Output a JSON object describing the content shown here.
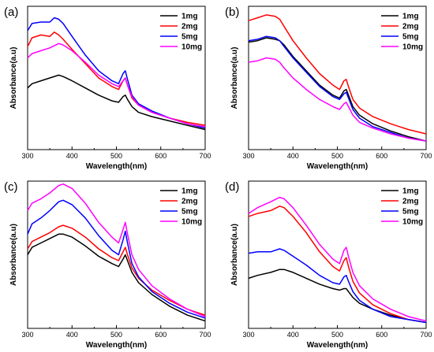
{
  "chart_data": [
    {
      "type": "line",
      "panel_label": "(a)",
      "xlabel": "Wavelength(nm)",
      "ylabel": "Absorbance(a.u)",
      "xlim": [
        300,
        700
      ],
      "ylim": [
        0,
        1
      ],
      "xticks": [
        300,
        400,
        500,
        600,
        700
      ],
      "y_tick_labels": "none",
      "grid": false,
      "legend_position": "top-right",
      "series": [
        {
          "name": "1mg",
          "color": "#000000",
          "x": [
            300,
            310,
            330,
            350,
            370,
            380,
            400,
            430,
            460,
            490,
            505,
            515,
            520,
            525,
            535,
            550,
            580,
            620,
            660,
            700
          ],
          "y": [
            0.43,
            0.46,
            0.48,
            0.5,
            0.52,
            0.51,
            0.48,
            0.43,
            0.38,
            0.34,
            0.33,
            0.37,
            0.38,
            0.35,
            0.3,
            0.26,
            0.23,
            0.2,
            0.17,
            0.14
          ]
        },
        {
          "name": "2mg",
          "color": "#ff0000",
          "x": [
            300,
            310,
            330,
            350,
            360,
            370,
            380,
            400,
            430,
            460,
            490,
            505,
            515,
            520,
            525,
            535,
            550,
            580,
            620,
            660,
            700
          ],
          "y": [
            0.72,
            0.78,
            0.8,
            0.79,
            0.82,
            0.8,
            0.77,
            0.7,
            0.6,
            0.5,
            0.44,
            0.42,
            0.48,
            0.5,
            0.45,
            0.36,
            0.31,
            0.26,
            0.22,
            0.19,
            0.17
          ]
        },
        {
          "name": "5mg",
          "color": "#0000ff",
          "x": [
            300,
            310,
            330,
            350,
            360,
            370,
            380,
            400,
            430,
            460,
            490,
            505,
            515,
            520,
            525,
            535,
            550,
            580,
            620,
            660,
            700
          ],
          "y": [
            0.83,
            0.88,
            0.89,
            0.89,
            0.92,
            0.91,
            0.88,
            0.79,
            0.66,
            0.55,
            0.48,
            0.46,
            0.53,
            0.55,
            0.49,
            0.38,
            0.32,
            0.27,
            0.22,
            0.18,
            0.15
          ]
        },
        {
          "name": "10mg",
          "color": "#ff00ff",
          "x": [
            300,
            310,
            330,
            350,
            370,
            380,
            400,
            430,
            460,
            490,
            505,
            515,
            520,
            525,
            535,
            550,
            580,
            620,
            660,
            700
          ],
          "y": [
            0.64,
            0.67,
            0.69,
            0.71,
            0.74,
            0.73,
            0.69,
            0.61,
            0.52,
            0.46,
            0.44,
            0.48,
            0.5,
            0.45,
            0.37,
            0.31,
            0.26,
            0.22,
            0.18,
            0.16
          ]
        }
      ]
    },
    {
      "type": "line",
      "panel_label": "(b)",
      "xlabel": "Wavelength(nm)",
      "ylabel": "Absorbance(a.u)",
      "xlim": [
        300,
        700
      ],
      "ylim": [
        0,
        1
      ],
      "xticks": [
        300,
        400,
        500,
        600,
        700
      ],
      "y_tick_labels": "none",
      "grid": false,
      "legend_position": "top-right",
      "series": [
        {
          "name": "1mg",
          "color": "#000000",
          "x": [
            300,
            320,
            340,
            360,
            370,
            380,
            400,
            430,
            460,
            490,
            505,
            515,
            520,
            525,
            535,
            550,
            580,
            620,
            660,
            700
          ],
          "y": [
            0.75,
            0.76,
            0.78,
            0.77,
            0.76,
            0.73,
            0.65,
            0.55,
            0.45,
            0.38,
            0.36,
            0.41,
            0.42,
            0.38,
            0.3,
            0.24,
            0.18,
            0.13,
            0.09,
            0.06
          ]
        },
        {
          "name": "2mg",
          "color": "#ff0000",
          "x": [
            300,
            320,
            340,
            360,
            370,
            380,
            400,
            430,
            460,
            490,
            505,
            515,
            520,
            525,
            535,
            550,
            580,
            620,
            660,
            700
          ],
          "y": [
            0.9,
            0.92,
            0.94,
            0.93,
            0.91,
            0.86,
            0.76,
            0.64,
            0.53,
            0.45,
            0.42,
            0.48,
            0.49,
            0.44,
            0.35,
            0.29,
            0.23,
            0.18,
            0.14,
            0.11
          ]
        },
        {
          "name": "5mg",
          "color": "#0000ff",
          "x": [
            300,
            320,
            340,
            360,
            370,
            380,
            400,
            430,
            460,
            490,
            505,
            515,
            520,
            525,
            535,
            550,
            580,
            620,
            660,
            700
          ],
          "y": [
            0.76,
            0.77,
            0.79,
            0.78,
            0.76,
            0.72,
            0.64,
            0.54,
            0.44,
            0.37,
            0.35,
            0.39,
            0.4,
            0.36,
            0.28,
            0.22,
            0.16,
            0.12,
            0.08,
            0.06
          ]
        },
        {
          "name": "10mg",
          "color": "#ff00ff",
          "x": [
            300,
            320,
            340,
            360,
            370,
            380,
            400,
            430,
            460,
            490,
            505,
            515,
            520,
            525,
            535,
            550,
            580,
            620,
            660,
            700
          ],
          "y": [
            0.61,
            0.62,
            0.64,
            0.63,
            0.61,
            0.57,
            0.5,
            0.42,
            0.35,
            0.3,
            0.28,
            0.32,
            0.33,
            0.3,
            0.24,
            0.19,
            0.15,
            0.11,
            0.08,
            0.06
          ]
        }
      ]
    },
    {
      "type": "line",
      "panel_label": "(c)",
      "xlabel": "Wavelength(nm)",
      "ylabel": "Absorbance(a.u)",
      "xlim": [
        300,
        700
      ],
      "ylim": [
        0,
        1
      ],
      "xticks": [
        300,
        400,
        500,
        600,
        700
      ],
      "y_tick_labels": "none",
      "grid": false,
      "legend_position": "top-right",
      "series": [
        {
          "name": "1mg",
          "color": "#000000",
          "x": [
            300,
            310,
            330,
            350,
            370,
            380,
            400,
            430,
            460,
            490,
            505,
            515,
            520,
            525,
            535,
            550,
            580,
            620,
            660,
            700
          ],
          "y": [
            0.5,
            0.55,
            0.58,
            0.61,
            0.64,
            0.64,
            0.62,
            0.56,
            0.49,
            0.44,
            0.42,
            0.47,
            0.5,
            0.46,
            0.38,
            0.31,
            0.23,
            0.15,
            0.09,
            0.05
          ]
        },
        {
          "name": "2mg",
          "color": "#ff0000",
          "x": [
            300,
            310,
            330,
            350,
            370,
            380,
            400,
            430,
            460,
            490,
            505,
            515,
            520,
            525,
            535,
            550,
            580,
            620,
            660,
            700
          ],
          "y": [
            0.54,
            0.59,
            0.62,
            0.65,
            0.69,
            0.7,
            0.68,
            0.62,
            0.54,
            0.48,
            0.46,
            0.52,
            0.55,
            0.5,
            0.41,
            0.34,
            0.26,
            0.19,
            0.13,
            0.09
          ]
        },
        {
          "name": "5mg",
          "color": "#0000ff",
          "x": [
            300,
            310,
            330,
            350,
            370,
            380,
            400,
            430,
            460,
            490,
            505,
            515,
            520,
            525,
            535,
            550,
            580,
            620,
            660,
            700
          ],
          "y": [
            0.64,
            0.71,
            0.75,
            0.8,
            0.86,
            0.87,
            0.84,
            0.75,
            0.63,
            0.53,
            0.5,
            0.6,
            0.66,
            0.58,
            0.44,
            0.35,
            0.25,
            0.17,
            0.11,
            0.07
          ]
        },
        {
          "name": "10mg",
          "color": "#ff00ff",
          "x": [
            300,
            310,
            330,
            350,
            370,
            380,
            400,
            430,
            460,
            490,
            505,
            515,
            520,
            525,
            535,
            550,
            580,
            620,
            660,
            700
          ],
          "y": [
            0.8,
            0.85,
            0.88,
            0.92,
            0.97,
            0.98,
            0.95,
            0.85,
            0.72,
            0.62,
            0.58,
            0.67,
            0.72,
            0.64,
            0.5,
            0.4,
            0.29,
            0.2,
            0.13,
            0.08
          ]
        }
      ]
    },
    {
      "type": "line",
      "panel_label": "(d)",
      "xlabel": "Wavelength(nm)",
      "ylabel": "Absorbance(a.u)",
      "xlim": [
        300,
        700
      ],
      "ylim": [
        0,
        1
      ],
      "xticks": [
        300,
        400,
        500,
        600,
        700
      ],
      "y_tick_labels": "none",
      "grid": false,
      "legend_position": "top-right",
      "series": [
        {
          "name": "1mg",
          "color": "#000000",
          "x": [
            300,
            320,
            350,
            370,
            380,
            400,
            430,
            460,
            490,
            505,
            515,
            520,
            525,
            535,
            550,
            580,
            620,
            660,
            700
          ],
          "y": [
            0.34,
            0.36,
            0.38,
            0.4,
            0.4,
            0.38,
            0.34,
            0.3,
            0.27,
            0.26,
            0.27,
            0.27,
            0.25,
            0.21,
            0.17,
            0.13,
            0.09,
            0.06,
            0.04
          ]
        },
        {
          "name": "2mg",
          "color": "#ff0000",
          "x": [
            300,
            320,
            350,
            370,
            380,
            400,
            430,
            460,
            490,
            505,
            515,
            520,
            525,
            535,
            550,
            580,
            620,
            660,
            700
          ],
          "y": [
            0.76,
            0.78,
            0.8,
            0.83,
            0.82,
            0.76,
            0.65,
            0.52,
            0.42,
            0.39,
            0.46,
            0.48,
            0.42,
            0.32,
            0.24,
            0.16,
            0.1,
            0.06,
            0.04
          ]
        },
        {
          "name": "5mg",
          "color": "#0000ff",
          "x": [
            300,
            320,
            350,
            370,
            380,
            400,
            430,
            460,
            490,
            505,
            515,
            520,
            525,
            535,
            550,
            580,
            620,
            660,
            700
          ],
          "y": [
            0.51,
            0.52,
            0.52,
            0.54,
            0.53,
            0.49,
            0.43,
            0.36,
            0.31,
            0.3,
            0.35,
            0.36,
            0.32,
            0.25,
            0.19,
            0.13,
            0.08,
            0.06,
            0.04
          ]
        },
        {
          "name": "10mg",
          "color": "#ff00ff",
          "x": [
            300,
            320,
            350,
            370,
            380,
            400,
            430,
            460,
            490,
            505,
            515,
            520,
            525,
            535,
            550,
            580,
            620,
            660,
            700
          ],
          "y": [
            0.78,
            0.82,
            0.86,
            0.89,
            0.88,
            0.82,
            0.7,
            0.57,
            0.47,
            0.44,
            0.53,
            0.55,
            0.49,
            0.38,
            0.29,
            0.2,
            0.13,
            0.08,
            0.05
          ]
        }
      ]
    }
  ]
}
